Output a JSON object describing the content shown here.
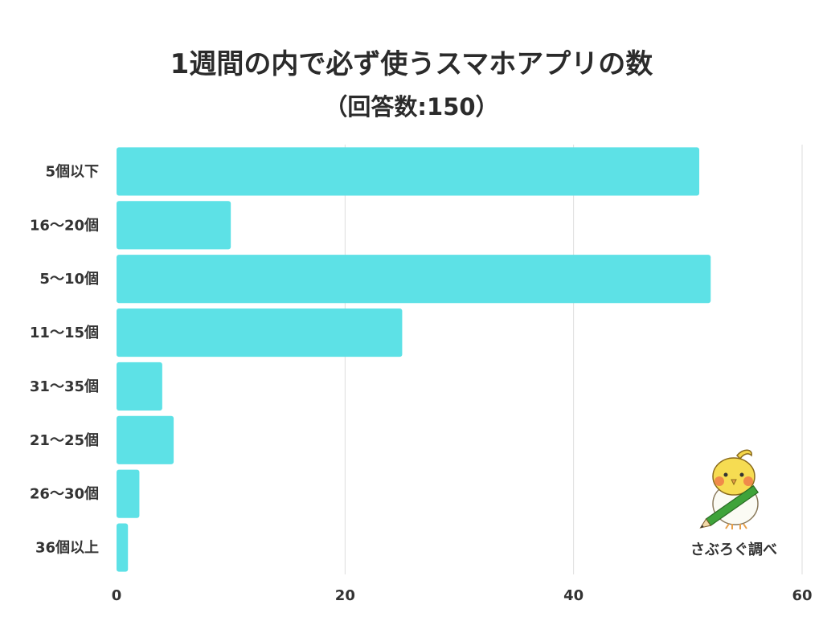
{
  "chart_data": {
    "type": "bar",
    "orientation": "horizontal",
    "title": "1週間の内で必ず使うスマホアプリの数",
    "subtitle": "（回答数:150）",
    "categories": [
      "5個以下",
      "16〜20個",
      "5〜10個",
      "11〜15個",
      "31〜35個",
      "21〜25個",
      "26〜30個",
      "36個以上"
    ],
    "values": [
      51,
      10,
      52,
      25,
      4,
      5,
      2,
      1
    ],
    "xlim": [
      0,
      60
    ],
    "xticks": [
      0,
      20,
      40,
      60
    ],
    "grid": true,
    "bar_color": "#5de1e6",
    "grid_color": "#dddddd"
  },
  "credit": {
    "text": "さぶろぐ調べ",
    "icon": "bird-with-pencil-icon"
  }
}
